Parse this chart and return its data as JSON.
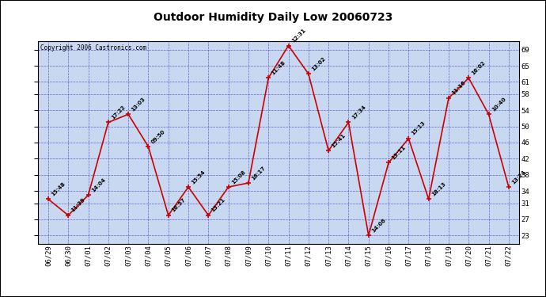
{
  "title": "Outdoor Humidity Daily Low 20060723",
  "copyright": "Copyright 2006 Castronics.com",
  "outer_bg": "#ffffff",
  "plot_bg_color": "#c8d8f0",
  "line_color": "#cc0000",
  "marker_color": "#cc0000",
  "grid_color": "#4444cc",
  "ylim": [
    21,
    71
  ],
  "yticks": [
    23,
    27,
    31,
    34,
    38,
    42,
    46,
    50,
    54,
    58,
    61,
    65,
    69
  ],
  "dates": [
    "06/29",
    "06/30",
    "07/01",
    "07/02",
    "07/03",
    "07/04",
    "07/05",
    "07/06",
    "07/07",
    "07/08",
    "07/09",
    "07/10",
    "07/11",
    "07/12",
    "07/13",
    "07/14",
    "07/15",
    "07/16",
    "07/17",
    "07/18",
    "07/19",
    "07/20",
    "07/21",
    "07/22"
  ],
  "values": [
    32,
    28,
    33,
    51,
    53,
    45,
    28,
    35,
    28,
    35,
    36,
    62,
    70,
    63,
    44,
    51,
    23,
    41,
    47,
    32,
    57,
    62,
    53,
    35
  ],
  "labels": [
    "15:48",
    "11:39",
    "14:04",
    "17:22",
    "13:03",
    "09:50",
    "16:57",
    "15:54",
    "13:21",
    "15:08",
    "16:17",
    "11:48",
    "12:31",
    "13:02",
    "15:41",
    "17:34",
    "14:06",
    "13:11",
    "15:13",
    "18:13",
    "11:16",
    "16:02",
    "10:40",
    "13:24"
  ]
}
